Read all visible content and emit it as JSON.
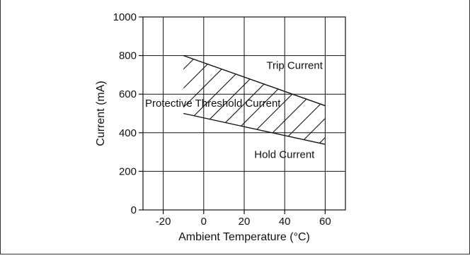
{
  "chart_data": {
    "type": "line",
    "title": "",
    "xlabel": "Ambient Temperature (°C)",
    "ylabel": "Current (mA)",
    "xlim": [
      -30,
      70
    ],
    "ylim": [
      0,
      1000
    ],
    "x_ticks": [
      -20,
      0,
      20,
      40,
      60
    ],
    "y_ticks": [
      0,
      200,
      400,
      600,
      800,
      1000
    ],
    "x_tick_labels": [
      "-20",
      "0",
      "20",
      "40",
      "60"
    ],
    "y_tick_labels": [
      "0",
      "200",
      "400",
      "600",
      "800",
      "1000"
    ],
    "grid": true,
    "series": [
      {
        "name": "Trip Current",
        "x": [
          -10,
          60
        ],
        "y": [
          800,
          540
        ]
      },
      {
        "name": "Hold Current",
        "x": [
          -10,
          60
        ],
        "y": [
          500,
          340
        ]
      }
    ],
    "annotations": [
      {
        "text": "Trip Current"
      },
      {
        "text": "Protective Threshold Current"
      },
      {
        "text": "Hold Current"
      }
    ],
    "shaded_region": "hatched band between Trip Current and Hold Current"
  }
}
